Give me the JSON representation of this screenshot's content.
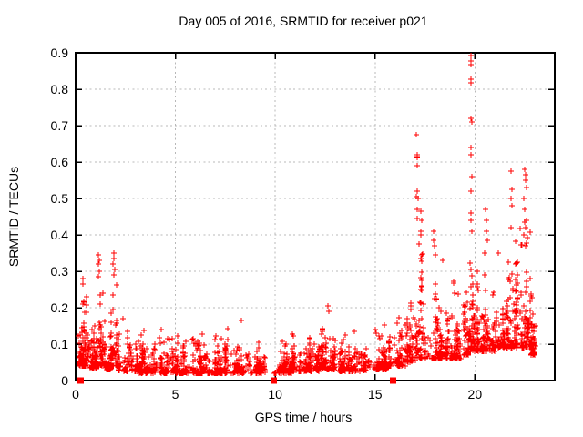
{
  "figure": {
    "title": "Day 005 of 2016, SRMTID for receiver p021",
    "xlabel": "GPS time / hours",
    "ylabel": "SRMTID / TECUs",
    "background_color": "#ffffff",
    "border_color": "#000000",
    "grid_color": "#b8b8b8",
    "marker_color": "#ff0000",
    "marker_shape": "plus-cross",
    "zero_marker_shape": "filled-square"
  },
  "chart_data": {
    "type": "scatter",
    "title": "Day 005 of 2016, SRMTID for receiver p021",
    "xlabel": "GPS time / hours",
    "ylabel": "SRMTID / TECUs",
    "xlim": [
      0,
      24
    ],
    "ylim": [
      0,
      0.9
    ],
    "xticks": [
      {
        "v": 0,
        "label": "0"
      },
      {
        "v": 5,
        "label": "5"
      },
      {
        "v": 10,
        "label": "10"
      },
      {
        "v": 15,
        "label": "15"
      },
      {
        "v": 20,
        "label": "20"
      }
    ],
    "yticks": [
      {
        "v": 0,
        "label": "0"
      },
      {
        "v": 0.1,
        "label": "0.1"
      },
      {
        "v": 0.2,
        "label": "0.2"
      },
      {
        "v": 0.3,
        "label": "0.3"
      },
      {
        "v": 0.4,
        "label": "0.4"
      },
      {
        "v": 0.5,
        "label": "0.5"
      },
      {
        "v": 0.6,
        "label": "0.6"
      },
      {
        "v": 0.7,
        "label": "0.7"
      },
      {
        "v": 0.8,
        "label": "0.8"
      },
      {
        "v": 0.9,
        "label": "0.9"
      }
    ],
    "grid": true,
    "legend": "none",
    "series_name": "SRMTID",
    "data_gaps_hours": [
      [
        9.5,
        9.95
      ]
    ],
    "zero_flag_points": [
      [
        0.25,
        0
      ],
      [
        9.9,
        0
      ],
      [
        15.9,
        0
      ]
    ],
    "density_bands": [
      [
        0.1,
        0.7,
        110,
        0.04,
        0.26,
        2.4
      ],
      [
        0.7,
        1.1,
        60,
        0.03,
        0.18,
        2.4
      ],
      [
        1.1,
        1.45,
        55,
        0.04,
        0.3,
        2.2
      ],
      [
        1.45,
        1.8,
        45,
        0.03,
        0.14,
        2.2
      ],
      [
        1.8,
        2.15,
        50,
        0.04,
        0.31,
        2.2
      ],
      [
        2.15,
        3.2,
        100,
        0.025,
        0.165,
        2.6
      ],
      [
        3.2,
        5.0,
        190,
        0.02,
        0.15,
        2.7
      ],
      [
        5.0,
        7.0,
        210,
        0.02,
        0.145,
        2.7
      ],
      [
        7.0,
        8.6,
        170,
        0.02,
        0.16,
        2.6
      ],
      [
        8.6,
        9.5,
        90,
        0.02,
        0.125,
        2.5
      ],
      [
        9.95,
        10.8,
        85,
        0.02,
        0.13,
        2.5
      ],
      [
        10.8,
        12.2,
        140,
        0.025,
        0.145,
        2.6
      ],
      [
        12.2,
        13.1,
        95,
        0.03,
        0.185,
        2.5
      ],
      [
        13.1,
        14.6,
        150,
        0.025,
        0.14,
        2.6
      ],
      [
        14.6,
        15.7,
        110,
        0.03,
        0.165,
        2.4
      ],
      [
        15.7,
        16.6,
        100,
        0.04,
        0.2,
        2.3
      ],
      [
        16.6,
        17.05,
        55,
        0.05,
        0.27,
        2.2
      ],
      [
        17.05,
        17.5,
        60,
        0.06,
        0.4,
        2.4
      ],
      [
        17.5,
        18.35,
        95,
        0.06,
        0.33,
        2.6
      ],
      [
        18.35,
        19.35,
        105,
        0.06,
        0.28,
        2.5
      ],
      [
        19.35,
        19.75,
        50,
        0.07,
        0.32,
        2.3
      ],
      [
        19.75,
        20.1,
        55,
        0.08,
        0.5,
        2.5
      ],
      [
        20.1,
        21.0,
        115,
        0.08,
        0.31,
        2.4
      ],
      [
        21.0,
        21.75,
        95,
        0.09,
        0.38,
        2.5
      ],
      [
        21.75,
        22.35,
        85,
        0.09,
        0.45,
        2.6
      ],
      [
        22.35,
        22.8,
        70,
        0.09,
        0.5,
        2.6
      ],
      [
        22.8,
        23.15,
        45,
        0.07,
        0.24,
        2.1
      ]
    ],
    "outlier_points": [
      [
        0.35,
        0.28
      ],
      [
        0.38,
        0.265
      ],
      [
        1.15,
        0.345
      ],
      [
        1.18,
        0.33
      ],
      [
        1.13,
        0.32
      ],
      [
        1.2,
        0.3
      ],
      [
        1.16,
        0.285
      ],
      [
        1.9,
        0.35
      ],
      [
        1.93,
        0.335
      ],
      [
        1.88,
        0.32
      ],
      [
        1.95,
        0.305
      ],
      [
        1.91,
        0.29
      ],
      [
        2.35,
        0.17
      ],
      [
        8.3,
        0.165
      ],
      [
        12.65,
        0.205
      ],
      [
        12.7,
        0.19
      ],
      [
        17.08,
        0.675
      ],
      [
        17.1,
        0.62
      ],
      [
        17.12,
        0.615
      ],
      [
        17.09,
        0.613
      ],
      [
        17.11,
        0.59
      ],
      [
        17.13,
        0.52
      ],
      [
        17.07,
        0.505
      ],
      [
        17.15,
        0.5
      ],
      [
        17.1,
        0.47
      ],
      [
        17.3,
        0.465
      ],
      [
        17.12,
        0.445
      ],
      [
        17.32,
        0.44
      ],
      [
        17.28,
        0.41
      ],
      [
        17.3,
        0.4
      ],
      [
        17.95,
        0.41
      ],
      [
        17.93,
        0.385
      ],
      [
        17.97,
        0.37
      ],
      [
        18.0,
        0.345
      ],
      [
        18.4,
        0.33
      ],
      [
        19.78,
        0.892
      ],
      [
        19.8,
        0.878
      ],
      [
        19.79,
        0.868
      ],
      [
        19.82,
        0.828
      ],
      [
        19.81,
        0.818
      ],
      [
        19.8,
        0.72
      ],
      [
        19.83,
        0.71
      ],
      [
        19.79,
        0.64
      ],
      [
        19.81,
        0.62
      ],
      [
        19.84,
        0.56
      ],
      [
        19.8,
        0.52
      ],
      [
        19.82,
        0.46
      ],
      [
        19.78,
        0.44
      ],
      [
        19.85,
        0.41
      ],
      [
        20.55,
        0.47
      ],
      [
        20.6,
        0.44
      ],
      [
        20.58,
        0.41
      ],
      [
        20.62,
        0.385
      ],
      [
        20.5,
        0.35
      ],
      [
        21.82,
        0.575
      ],
      [
        21.85,
        0.525
      ],
      [
        21.8,
        0.5
      ],
      [
        21.87,
        0.48
      ],
      [
        21.83,
        0.42
      ],
      [
        22.48,
        0.58
      ],
      [
        22.55,
        0.565
      ],
      [
        22.52,
        0.55
      ],
      [
        22.58,
        0.53
      ],
      [
        22.45,
        0.5
      ],
      [
        22.5,
        0.47
      ],
      [
        22.6,
        0.44
      ],
      [
        22.53,
        0.42
      ],
      [
        22.47,
        0.4
      ],
      [
        22.56,
        0.37
      ]
    ]
  }
}
